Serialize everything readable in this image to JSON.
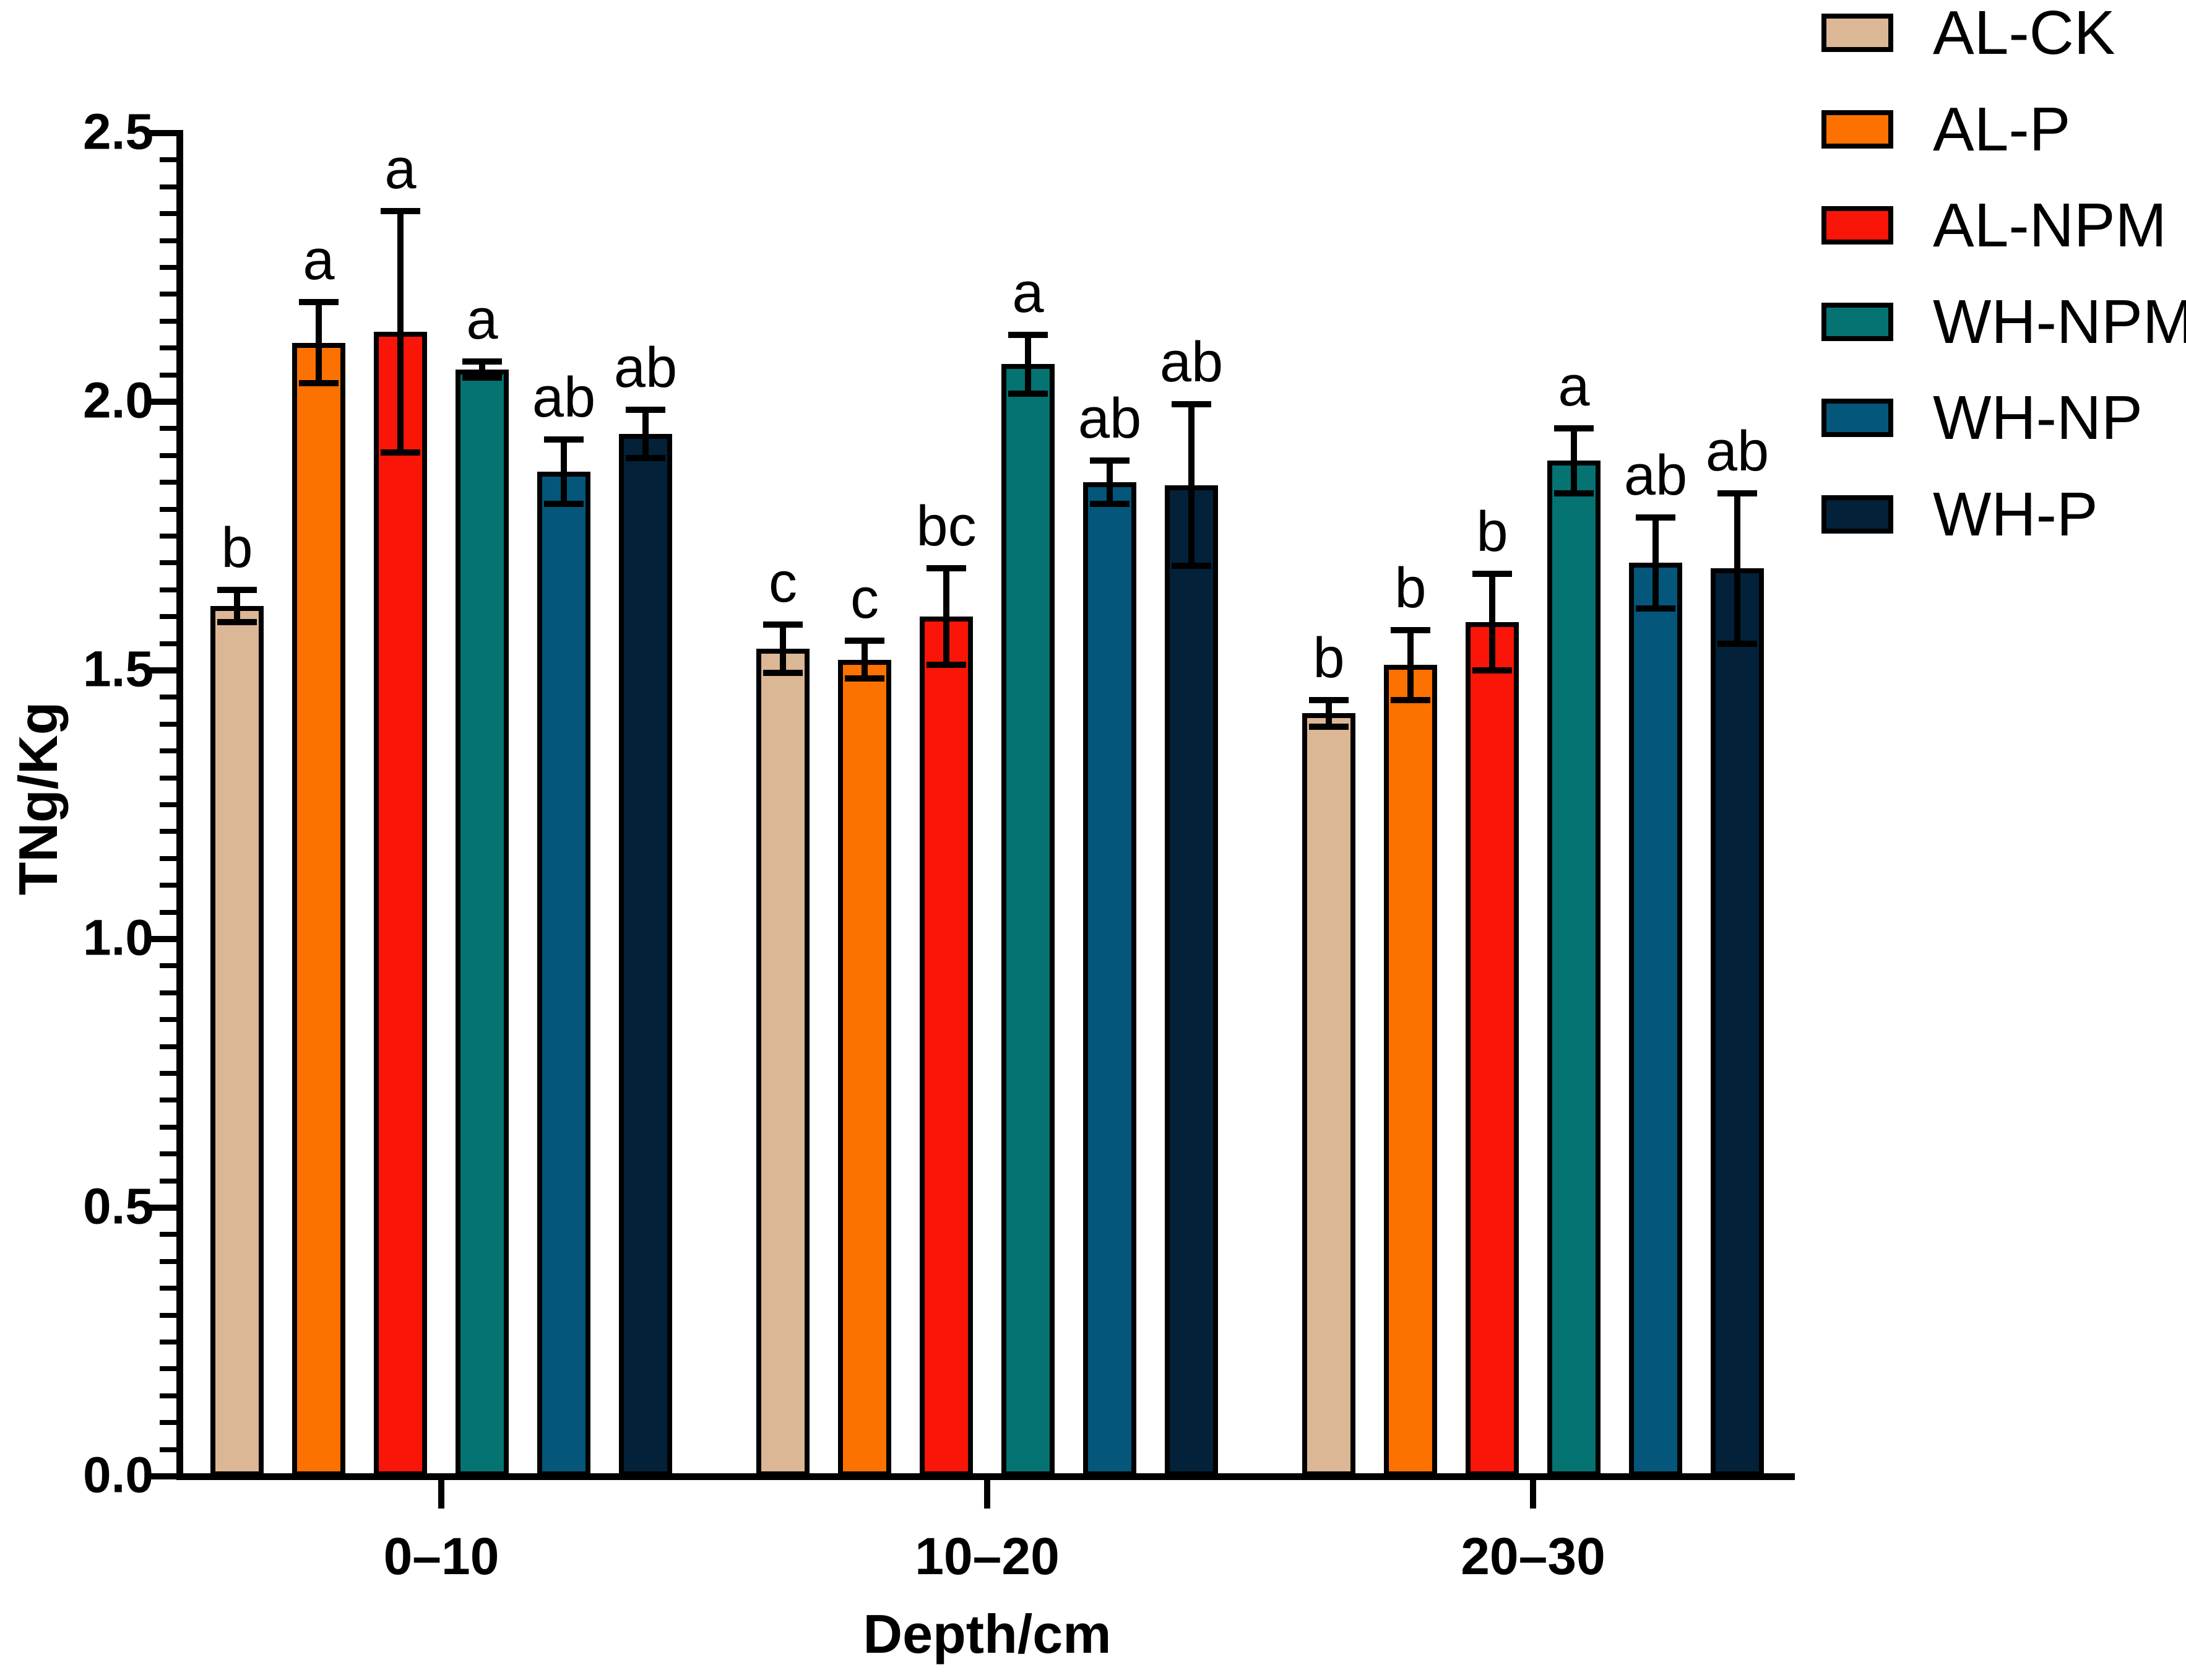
{
  "chart_data": {
    "type": "bar",
    "title": "",
    "xlabel": "Depth/cm",
    "ylabel": "TNg/Kg",
    "ylim": [
      0,
      2.5
    ],
    "y_major_step": 0.5,
    "y_minor_step": 0.05,
    "y_tick_labels": [
      "0.0",
      "0.5",
      "1.0",
      "1.5",
      "2.0",
      "2.5"
    ],
    "categories": [
      "0–10",
      "10–20",
      "20–30"
    ],
    "grid": false,
    "legend_position": "top-right",
    "error_bars": "plus-minus, capped",
    "series": [
      {
        "name": "AL-CK",
        "color": "#DBB796",
        "values": [
          1.62,
          1.54,
          1.42
        ],
        "errors": [
          0.03,
          0.045,
          0.025
        ],
        "letters": [
          "b",
          "c",
          "b"
        ]
      },
      {
        "name": "AL-P",
        "color": "#FC7100",
        "values": [
          2.11,
          1.52,
          1.51
        ],
        "errors": [
          0.075,
          0.035,
          0.065
        ],
        "letters": [
          "a",
          "c",
          "b"
        ]
      },
      {
        "name": "AL-NPM",
        "color": "#F91508",
        "values": [
          2.13,
          1.6,
          1.59
        ],
        "errors": [
          0.225,
          0.09,
          0.09
        ],
        "letters": [
          "a",
          "bc",
          "b"
        ]
      },
      {
        "name": "WH-NPM",
        "color": "#047372",
        "values": [
          2.06,
          2.07,
          1.89
        ],
        "errors": [
          0.015,
          0.055,
          0.06
        ],
        "letters": [
          "a",
          "a",
          "a"
        ]
      },
      {
        "name": "WH-NP",
        "color": "#04567A",
        "values": [
          1.87,
          1.85,
          1.7
        ],
        "errors": [
          0.06,
          0.04,
          0.085
        ],
        "letters": [
          "ab",
          "ab",
          "ab"
        ]
      },
      {
        "name": "WH-P",
        "color": "#032138",
        "values": [
          1.94,
          1.845,
          1.69
        ],
        "errors": [
          0.045,
          0.15,
          0.14
        ],
        "letters": [
          "ab",
          "ab",
          "ab"
        ]
      }
    ]
  }
}
